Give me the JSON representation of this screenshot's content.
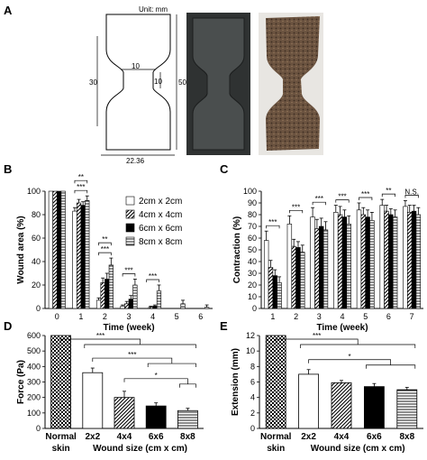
{
  "figure": {
    "panel_labels": [
      "A",
      "B",
      "C",
      "D",
      "E"
    ],
    "unit_label": "Unit: mm",
    "dims": {
      "top_width": "10",
      "neck_width": "10",
      "side_height": "30",
      "total_height": "50",
      "base_width": "22.36"
    }
  },
  "colors": {
    "ink": "#000000",
    "mold": "#3a3d3d",
    "skin": "#6b5340",
    "skin_light": "#8a6e52"
  },
  "chart_data": [
    {
      "type": "bar",
      "panel": "B",
      "xlabel": "Time (week)",
      "ylabel": "Wound area (%)",
      "ylim": [
        0,
        100
      ],
      "yticks": [
        "0",
        "20",
        "40",
        "60",
        "80",
        "100"
      ],
      "categories": [
        "0",
        "1",
        "2",
        "3",
        "4",
        "5",
        "6"
      ],
      "legend": "top-right",
      "series": [
        {
          "name": "2cm x 2cm",
          "pattern": "white",
          "values": [
            100,
            83,
            7,
            2,
            0,
            0,
            0
          ],
          "errors": [
            0,
            3,
            2,
            1,
            0,
            0,
            0
          ]
        },
        {
          "name": "4cm x 4cm",
          "pattern": "diagonal",
          "values": [
            100,
            90,
            22,
            4,
            1,
            0,
            0
          ],
          "errors": [
            0,
            3,
            4,
            2,
            1,
            0,
            0
          ]
        },
        {
          "name": "6cm x 6cm",
          "pattern": "black",
          "values": [
            100,
            88,
            25,
            8,
            2,
            0,
            0
          ],
          "errors": [
            0,
            3,
            5,
            3,
            1,
            0,
            0
          ]
        },
        {
          "name": "8cm x 8cm",
          "pattern": "horizontal",
          "values": [
            100,
            92,
            37,
            20,
            15,
            4,
            1
          ],
          "errors": [
            0,
            4,
            6,
            5,
            5,
            3,
            2
          ]
        }
      ],
      "significance": [
        {
          "category": "1",
          "label": "***"
        },
        {
          "category": "1",
          "label": "**"
        },
        {
          "category": "2",
          "label": "***"
        },
        {
          "category": "2",
          "label": "**"
        },
        {
          "category": "3",
          "label": "***"
        },
        {
          "category": "4",
          "label": "***"
        }
      ]
    },
    {
      "type": "bar",
      "panel": "C",
      "xlabel": "Time (week)",
      "ylabel": "Contraction (%)",
      "ylim": [
        0,
        100
      ],
      "yticks": [
        "0",
        "10",
        "20",
        "30",
        "40",
        "50",
        "60",
        "70",
        "80",
        "90",
        "100"
      ],
      "categories": [
        "1",
        "2",
        "3",
        "4",
        "5",
        "6",
        "7"
      ],
      "series": [
        {
          "name": "2cm x 2cm",
          "values": [
            58,
            72,
            78,
            82,
            84,
            88,
            87
          ],
          "errors": [
            8,
            7,
            8,
            6,
            6,
            5,
            5
          ]
        },
        {
          "name": "4cm x 4cm",
          "values": [
            35,
            53,
            68,
            80,
            80,
            83,
            82
          ],
          "errors": [
            6,
            6,
            8,
            7,
            6,
            5,
            6
          ]
        },
        {
          "name": "6cm x 6cm",
          "values": [
            28,
            52,
            70,
            78,
            78,
            80,
            83
          ],
          "errors": [
            5,
            5,
            7,
            6,
            6,
            5,
            5
          ]
        },
        {
          "name": "8cm x 8cm",
          "values": [
            22,
            48,
            67,
            72,
            75,
            78,
            80
          ],
          "errors": [
            5,
            6,
            7,
            7,
            7,
            6,
            6
          ]
        }
      ],
      "significance": [
        {
          "category": "1",
          "label": "***"
        },
        {
          "category": "2",
          "label": "***"
        },
        {
          "category": "3",
          "label": "***"
        },
        {
          "category": "4",
          "label": "***"
        },
        {
          "category": "5",
          "label": "***"
        },
        {
          "category": "6",
          "label": "**"
        },
        {
          "category": "7",
          "label": "N.S."
        }
      ]
    },
    {
      "type": "bar",
      "panel": "D",
      "ylabel": "Force (Pa)",
      "xlabel": "Wound size (cm x cm)",
      "ylim": [
        0,
        600
      ],
      "yticks": [
        "0",
        "100",
        "200",
        "300",
        "400",
        "500",
        "600"
      ],
      "categories": [
        "Normal\nskin",
        "2x2",
        "4x4",
        "6x6",
        "8x8"
      ],
      "category_lines": [
        [
          "Normal",
          "skin"
        ],
        [
          "2x2"
        ],
        [
          "4x4"
        ],
        [
          "6x6"
        ],
        [
          "8x8"
        ]
      ],
      "patterns": [
        "checker",
        "white",
        "diagonal",
        "black",
        "horizontal"
      ],
      "values": [
        600,
        360,
        200,
        145,
        115
      ],
      "errors": [
        0,
        30,
        40,
        20,
        15
      ],
      "significance": [
        {
          "from": "Normal\nskin",
          "to": "2x2,4x4,6x6,8x8",
          "label": "***"
        },
        {
          "from": "2x2",
          "to": "6x6,8x8",
          "label": "***"
        },
        {
          "from": "4x4",
          "to": "8x8",
          "label": "*"
        }
      ]
    },
    {
      "type": "bar",
      "panel": "E",
      "ylabel": "Extension (mm)",
      "xlabel": "Wound size (cm x cm)",
      "ylim": [
        0,
        12
      ],
      "yticks": [
        "0",
        "2",
        "4",
        "6",
        "8",
        "10",
        "12"
      ],
      "categories": [
        "Normal\nskin",
        "2x2",
        "4x4",
        "6x6",
        "8x8"
      ],
      "category_lines": [
        [
          "Normal",
          "skin"
        ],
        [
          "2x2"
        ],
        [
          "4x4"
        ],
        [
          "6x6"
        ],
        [
          "8x8"
        ]
      ],
      "patterns": [
        "checker",
        "white",
        "diagonal",
        "black",
        "horizontal"
      ],
      "values": [
        12,
        7.0,
        5.9,
        5.4,
        5.0
      ],
      "errors": [
        0,
        0.6,
        0.3,
        0.4,
        0.3
      ],
      "significance": [
        {
          "from": "Normal\nskin",
          "to": "2x2,4x4,6x6,8x8",
          "label": "***"
        },
        {
          "from": "2x2",
          "to": "6x6,8x8",
          "label": "*"
        }
      ]
    }
  ]
}
